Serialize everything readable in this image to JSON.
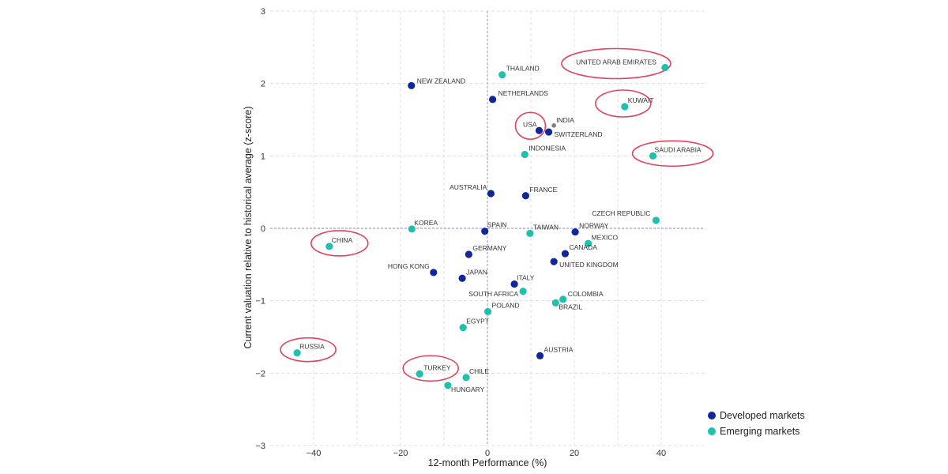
{
  "chart_data": {
    "type": "scatter",
    "xlabel": "12-month Performance (%)",
    "ylabel": "Current valuation relative to historical average (z-score)",
    "xlim": [
      -50,
      50
    ],
    "ylim": [
      -3,
      3
    ],
    "x_ticks": [
      -40,
      -20,
      0,
      20,
      40
    ],
    "y_ticks": [
      -3,
      -2,
      -1,
      0,
      1,
      2,
      3
    ],
    "x_tick_labels": [
      "−40",
      "−20",
      "0",
      "20",
      "40"
    ],
    "y_tick_labels": [
      "−3",
      "−2",
      "−1",
      "0",
      "1",
      "2",
      "3"
    ],
    "grid": true,
    "legend_position": "bottom-right",
    "colors": {
      "developed": "#10279b",
      "emerging": "#1fc1ad",
      "highlight": "#e0445e",
      "grid": "#d9d9d9",
      "zero_line": "#8a8ad0",
      "india_marker": "#7f7f7f"
    },
    "series": [
      {
        "name": "Developed markets",
        "color": "#10279b",
        "points": [
          {
            "label": "NEW ZEALAND",
            "x": -17.5,
            "y": 1.97
          },
          {
            "label": "NETHERLANDS",
            "x": 1.2,
            "y": 1.78
          },
          {
            "label": "USA",
            "x": 11.9,
            "y": 1.35
          },
          {
            "label": "SWITZERLAND",
            "x": 14.1,
            "y": 1.33
          },
          {
            "label": "AUSTRALIA",
            "x": 0.8,
            "y": 0.48
          },
          {
            "label": "FRANCE",
            "x": 8.8,
            "y": 0.45
          },
          {
            "label": "SPAIN",
            "x": -0.6,
            "y": -0.04
          },
          {
            "label": "NORWAY",
            "x": 20.2,
            "y": -0.05
          },
          {
            "label": "GERMANY",
            "x": -4.3,
            "y": -0.36
          },
          {
            "label": "CANADA",
            "x": 17.9,
            "y": -0.35
          },
          {
            "label": "UNITED KINGDOM",
            "x": 15.3,
            "y": -0.46
          },
          {
            "label": "HONG KONG",
            "x": -12.4,
            "y": -0.61
          },
          {
            "label": "JAPAN",
            "x": -5.8,
            "y": -0.69
          },
          {
            "label": "ITALY",
            "x": 6.2,
            "y": -0.77
          },
          {
            "label": "AUSTRIA",
            "x": 12.1,
            "y": -1.76
          }
        ]
      },
      {
        "name": "Emerging markets",
        "color": "#1fc1ad",
        "points": [
          {
            "label": "THAILAND",
            "x": 3.4,
            "y": 2.12
          },
          {
            "label": "UNITED ARAB EMIRATES",
            "x": 40.9,
            "y": 2.22
          },
          {
            "label": "KUWAIT",
            "x": 31.6,
            "y": 1.68
          },
          {
            "label": "INDONESIA",
            "x": 8.6,
            "y": 1.02
          },
          {
            "label": "SAUDI ARABIA",
            "x": 38.1,
            "y": 1.0
          },
          {
            "label": "CZECH REPUBLIC",
            "x": 38.8,
            "y": 0.11
          },
          {
            "label": "KOREA",
            "x": -17.4,
            "y": -0.01
          },
          {
            "label": "TAIWAN",
            "x": 9.8,
            "y": -0.07
          },
          {
            "label": "MEXICO",
            "x": 23.2,
            "y": -0.21
          },
          {
            "label": "CHINA",
            "x": -36.4,
            "y": -0.25
          },
          {
            "label": "SOUTH AFRICA",
            "x": 8.2,
            "y": -0.87
          },
          {
            "label": "COLOMBIA",
            "x": 17.4,
            "y": -0.98
          },
          {
            "label": "BRAZIL",
            "x": 15.7,
            "y": -1.03
          },
          {
            "label": "POLAND",
            "x": 0.1,
            "y": -1.15
          },
          {
            "label": "EGYPT",
            "x": -5.6,
            "y": -1.37
          },
          {
            "label": "RUSSIA",
            "x": -43.8,
            "y": -1.72
          },
          {
            "label": "TURKEY",
            "x": -15.6,
            "y": -2.01
          },
          {
            "label": "CHILE",
            "x": -4.9,
            "y": -2.06
          },
          {
            "label": "HUNGARY",
            "x": -9.1,
            "y": -2.17
          }
        ]
      }
    ],
    "extra_points": [
      {
        "label": "INDIA",
        "x": 15.3,
        "y": 1.42,
        "color": "#7f7f7f"
      }
    ],
    "highlighted": [
      "UNITED ARAB EMIRATES",
      "KUWAIT",
      "USA",
      "SAUDI ARABIA",
      "CHINA",
      "RUSSIA",
      "TURKEY"
    ]
  }
}
